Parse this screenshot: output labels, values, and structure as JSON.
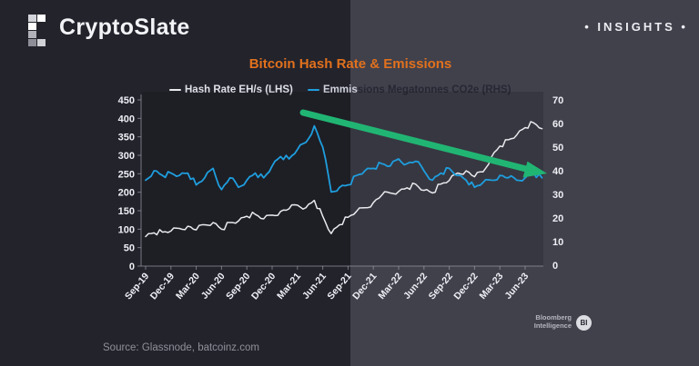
{
  "header": {
    "brand": "CryptoSlate",
    "insights_label": "• INSIGHTS •"
  },
  "chart": {
    "title": "Bitcoin Hash Rate & Emissions",
    "legend": [
      {
        "label": "Hash Rate EH/s (LHS)",
        "color": "#e9eaee"
      },
      {
        "label": "Emmissions Megatonnes CO2e (RHS)",
        "color": "#1e9ede"
      }
    ],
    "source": "Source: Glassnode, batcoinz.com"
  },
  "branding": {
    "bloomberg_line1": "Bloomberg",
    "bloomberg_line2": "Intelligence",
    "badge": "BI"
  },
  "colors": {
    "title_orange": "#e1711d",
    "hash_rate_line": "#e9eaee",
    "emissions_line": "#1e9ede",
    "arrow_green": "#21b573",
    "bg_left": "#23232c",
    "bg_right": "#41414c"
  },
  "chart_data": {
    "type": "line",
    "title": "Bitcoin Hash Rate & Emissions",
    "x": [
      "Sep-19",
      "Oct-19",
      "Nov-19",
      "Dec-19",
      "Jan-20",
      "Feb-20",
      "Mar-20",
      "Apr-20",
      "May-20",
      "Jun-20",
      "Jul-20",
      "Aug-20",
      "Sep-20",
      "Oct-20",
      "Nov-20",
      "Dec-20",
      "Jan-21",
      "Feb-21",
      "Mar-21",
      "Apr-21",
      "May-21",
      "Jun-21",
      "Jul-21",
      "Aug-21",
      "Sep-21",
      "Oct-21",
      "Nov-21",
      "Dec-21",
      "Jan-22",
      "Feb-22",
      "Mar-22",
      "Apr-22",
      "May-22",
      "Jun-22",
      "Jul-22",
      "Aug-22",
      "Sep-22",
      "Oct-22",
      "Nov-22",
      "Dec-22",
      "Jan-23",
      "Feb-23",
      "Mar-23",
      "Apr-23",
      "May-23",
      "Jun-23",
      "Jul-23",
      "Aug-23"
    ],
    "x_tick_labels": [
      "Sep-19",
      "Dec-19",
      "Mar-20",
      "Jun-20",
      "Sep-20",
      "Dec-20",
      "Mar-21",
      "Jun-21",
      "Sep-21",
      "Dec-21",
      "Mar-22",
      "Jun-22",
      "Sep-22",
      "Dec-22",
      "Mar-23",
      "Jun-23"
    ],
    "left_axis": {
      "ticks": [
        450,
        400,
        350,
        300,
        250,
        200,
        150,
        100,
        50,
        0
      ],
      "range": [
        0,
        450
      ]
    },
    "right_axis": {
      "ticks": [
        70,
        60,
        50,
        40,
        30,
        20,
        10,
        0
      ],
      "range": [
        0,
        70
      ]
    },
    "legend_position": "top",
    "grid": false,
    "series": [
      {
        "name": "Hash Rate EH/s (LHS)",
        "axis": "left",
        "color": "#e9eaee",
        "values": [
          80,
          90,
          92,
          95,
          102,
          108,
          98,
          112,
          118,
          100,
          118,
          122,
          135,
          140,
          128,
          138,
          148,
          155,
          165,
          158,
          178,
          135,
          88,
          112,
          132,
          148,
          158,
          172,
          192,
          198,
          202,
          212,
          222,
          205,
          198,
          222,
          232,
          252,
          258,
          242,
          255,
          295,
          325,
          342,
          355,
          375,
          388,
          372
        ]
      },
      {
        "name": "Emmissions Megatonnes CO2e (RHS)",
        "axis": "right",
        "color": "#1e9ede",
        "values": [
          36,
          40,
          38,
          39,
          38,
          39,
          34,
          37,
          41,
          32,
          37,
          33,
          36,
          39,
          37,
          42,
          46,
          45,
          49,
          52,
          59,
          50,
          31,
          33,
          34,
          38,
          40,
          41,
          43,
          42,
          45,
          43,
          44,
          40,
          36,
          39,
          41,
          38,
          36,
          33,
          35,
          36,
          38,
          37,
          36,
          37,
          39,
          37
        ]
      }
    ],
    "annotation_arrow": {
      "from_x": "Mar-21",
      "to_x": "Aug-23",
      "direction": "down-right",
      "color": "#21b573"
    }
  }
}
